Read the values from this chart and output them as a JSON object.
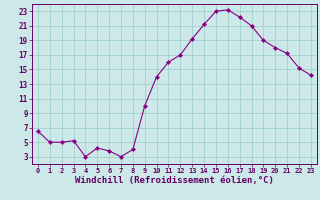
{
  "x": [
    0,
    1,
    2,
    3,
    4,
    5,
    6,
    7,
    8,
    9,
    10,
    11,
    12,
    13,
    14,
    15,
    16,
    17,
    18,
    19,
    20,
    21,
    22,
    23
  ],
  "y": [
    6.5,
    5.0,
    5.0,
    5.2,
    3.0,
    4.2,
    3.8,
    3.0,
    4.0,
    10.0,
    14.0,
    16.0,
    17.0,
    19.2,
    21.2,
    23.0,
    23.2,
    22.2,
    21.0,
    19.0,
    18.0,
    17.2,
    15.2,
    14.2
  ],
  "line_color": "#880088",
  "marker": "D",
  "marker_size": 2,
  "xlabel": "Windchill (Refroidissement éolien,°C)",
  "xlabel_fontsize": 6.5,
  "bg_color": "#cce8e8",
  "grid_color": "#99cccc",
  "tick_color": "#660066",
  "ylim": [
    2,
    24
  ],
  "yticks": [
    3,
    5,
    7,
    9,
    11,
    13,
    15,
    17,
    19,
    21,
    23
  ],
  "xticks": [
    0,
    1,
    2,
    3,
    4,
    5,
    6,
    7,
    8,
    9,
    10,
    11,
    12,
    13,
    14,
    15,
    16,
    17,
    18,
    19,
    20,
    21,
    22,
    23
  ],
  "axis_label_color": "#660066",
  "spine_color": "#660066"
}
